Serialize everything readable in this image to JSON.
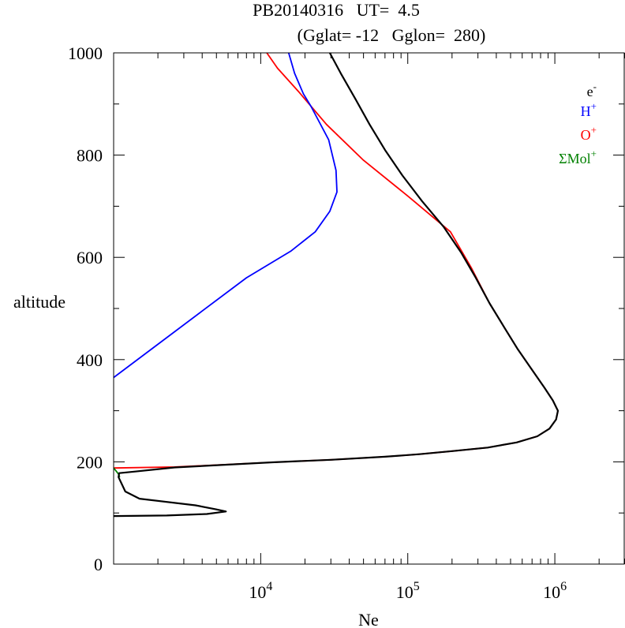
{
  "chart_data": {
    "type": "line",
    "title_line1": "PB20140316   UT=  4.5",
    "title_line2": "(Gglat= -12   Gglon=  280)",
    "xlabel": "Ne",
    "ylabel": "altitude",
    "x_scale": "log",
    "xlim": [
      1000,
      3000000
    ],
    "ylim": [
      0,
      1000
    ],
    "y_ticks": [
      0,
      200,
      400,
      600,
      800,
      1000
    ],
    "y_tick_labels": [
      "0",
      "200",
      "400",
      "600",
      "800",
      "1000"
    ],
    "x_major_ticks": [
      {
        "value": 10000,
        "base": "10",
        "exp": "4"
      },
      {
        "value": 100000,
        "base": "10",
        "exp": "5"
      },
      {
        "value": 1000000,
        "base": "10",
        "exp": "6"
      }
    ],
    "grid": false,
    "legend_position": "top-right",
    "series": [
      {
        "name": "e",
        "name_sup": "-",
        "color": "#000000",
        "points": [
          [
            1000,
            94
          ],
          [
            2300,
            95
          ],
          [
            4300,
            98
          ],
          [
            5800,
            103
          ],
          [
            5000,
            107
          ],
          [
            3600,
            115
          ],
          [
            1500,
            128
          ],
          [
            1200,
            142
          ],
          [
            1080,
            170
          ],
          [
            1090,
            178
          ],
          [
            1400,
            181
          ],
          [
            2600,
            189
          ],
          [
            12000,
            199
          ],
          [
            30000,
            204
          ],
          [
            70000,
            210
          ],
          [
            120000,
            215
          ],
          [
            200000,
            221
          ],
          [
            350000,
            228
          ],
          [
            550000,
            238
          ],
          [
            760000,
            250
          ],
          [
            920000,
            265
          ],
          [
            1020000,
            283
          ],
          [
            1050000,
            300
          ],
          [
            970000,
            320
          ],
          [
            850000,
            345
          ],
          [
            700000,
            380
          ],
          [
            560000,
            420
          ],
          [
            460000,
            460
          ],
          [
            360000,
            510
          ],
          [
            290000,
            560
          ],
          [
            230000,
            610
          ],
          [
            175000,
            660
          ],
          [
            125000,
            710
          ],
          [
            92000,
            760
          ],
          [
            70000,
            810
          ],
          [
            55000,
            860
          ],
          [
            44000,
            910
          ],
          [
            35000,
            960
          ],
          [
            29500,
            1000
          ]
        ]
      },
      {
        "name": "H",
        "name_sup": "+",
        "color": "#0000ff",
        "points": [
          [
            1000,
            365
          ],
          [
            2000,
            430
          ],
          [
            4000,
            495
          ],
          [
            8000,
            560
          ],
          [
            16000,
            612
          ],
          [
            23500,
            650
          ],
          [
            29500,
            690
          ],
          [
            33000,
            728
          ],
          [
            32500,
            770
          ],
          [
            29000,
            830
          ],
          [
            22000,
            895
          ],
          [
            19500,
            920
          ],
          [
            17000,
            960
          ],
          [
            15500,
            1000
          ]
        ]
      },
      {
        "name": "O",
        "name_sup": "+",
        "color": "#ff0000",
        "points": [
          [
            1000,
            188
          ],
          [
            2600,
            190
          ],
          [
            12000,
            199
          ],
          [
            30000,
            204
          ],
          [
            70000,
            210
          ],
          [
            120000,
            215
          ],
          [
            200000,
            221
          ],
          [
            350000,
            228
          ],
          [
            550000,
            238
          ],
          [
            760000,
            250
          ],
          [
            920000,
            265
          ],
          [
            1020000,
            283
          ],
          [
            1050000,
            300
          ],
          [
            970000,
            320
          ],
          [
            850000,
            345
          ],
          [
            700000,
            380
          ],
          [
            560000,
            420
          ],
          [
            460000,
            460
          ],
          [
            360000,
            510
          ],
          [
            270000,
            580
          ],
          [
            195000,
            650
          ],
          [
            100000,
            720
          ],
          [
            50000,
            790
          ],
          [
            28000,
            860
          ],
          [
            18000,
            925
          ],
          [
            13000,
            970
          ],
          [
            11000,
            1000
          ]
        ]
      },
      {
        "name": "ΣMol",
        "name_sup": "+",
        "color": "#008000",
        "points": [
          [
            1000,
            188
          ],
          [
            1040,
            182
          ],
          [
            1080,
            176
          ],
          [
            1100,
            170
          ]
        ]
      }
    ]
  }
}
